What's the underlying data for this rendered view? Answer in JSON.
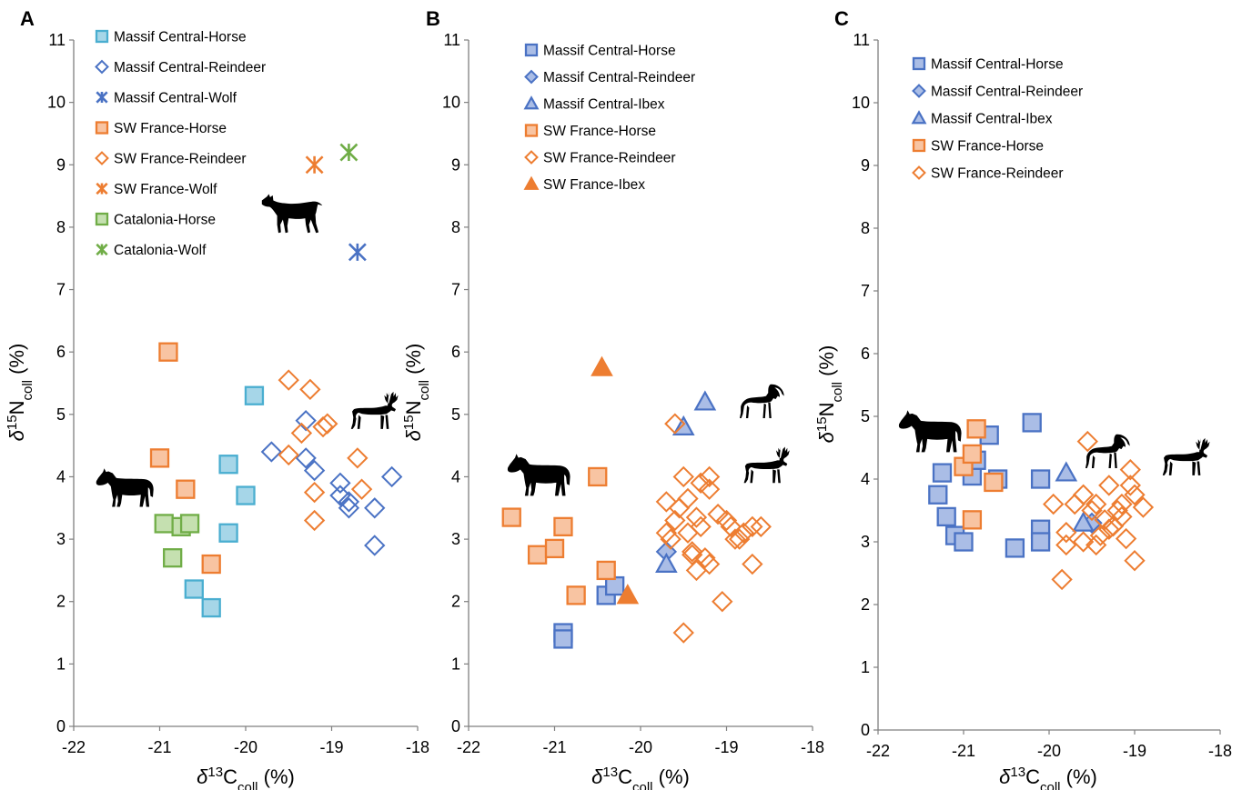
{
  "colors": {
    "teal": "#4aaed0",
    "teal_fill": "#a6d6e8",
    "blue": "#4a72c4",
    "blue_fill": "#aabde6",
    "orange": "#ed7d31",
    "orange_fill": "#f8c4a2",
    "green": "#70ad47",
    "green_fill": "#c5e0b0"
  },
  "chart_data": [
    {
      "panel": "A",
      "type": "scatter",
      "x_axis": {
        "symbol": "δ",
        "iso": "13",
        "el": "C",
        "sub": "coll",
        "unit": "(%)"
      },
      "y_axis": {
        "symbol": "δ",
        "iso": "15",
        "el": "N",
        "sub": "coll",
        "unit": "(%)"
      },
      "xlim": [
        -22,
        -18
      ],
      "ylim": [
        0,
        11
      ],
      "xticks": [
        "-22",
        "-21",
        "-20",
        "-19",
        "-18"
      ],
      "yticks": [
        "0",
        "1",
        "2",
        "3",
        "4",
        "5",
        "6",
        "7",
        "8",
        "9",
        "10",
        "11"
      ],
      "legend_position": "top-left",
      "silhouettes": [
        "wolf-icon",
        "reindeer-icon",
        "horse-icon"
      ],
      "series": [
        {
          "name": "Massif Central-Horse",
          "marker": "square",
          "stroke": "teal",
          "fill": "teal_fill",
          "points": [
            [
              -20.6,
              2.2
            ],
            [
              -20.4,
              1.9
            ],
            [
              -20.2,
              3.1
            ],
            [
              -20.2,
              4.2
            ],
            [
              -20.0,
              3.7
            ],
            [
              -19.9,
              5.3
            ]
          ]
        },
        {
          "name": "Massif Central-Reindeer",
          "marker": "diamond",
          "stroke": "blue",
          "fill": "none",
          "points": [
            [
              -19.7,
              4.4
            ],
            [
              -19.3,
              4.9
            ],
            [
              -19.3,
              4.3
            ],
            [
              -19.2,
              4.1
            ],
            [
              -18.9,
              3.9
            ],
            [
              -18.9,
              3.7
            ],
            [
              -18.8,
              3.6
            ],
            [
              -18.8,
              3.5
            ],
            [
              -18.5,
              3.5
            ],
            [
              -18.5,
              2.9
            ],
            [
              -18.3,
              4.0
            ]
          ]
        },
        {
          "name": "Massif Central-Wolf",
          "marker": "asterisk",
          "stroke": "blue",
          "fill": "none",
          "points": [
            [
              -18.7,
              7.6
            ]
          ]
        },
        {
          "name": "SW France-Horse",
          "marker": "square",
          "stroke": "orange",
          "fill": "orange_fill",
          "points": [
            [
              -21.0,
              4.3
            ],
            [
              -20.9,
              6.0
            ],
            [
              -20.7,
              3.8
            ],
            [
              -20.4,
              2.6
            ]
          ]
        },
        {
          "name": "SW France-Reindeer",
          "marker": "diamond",
          "stroke": "orange",
          "fill": "none",
          "points": [
            [
              -19.5,
              5.55
            ],
            [
              -19.5,
              4.35
            ],
            [
              -19.35,
              4.7
            ],
            [
              -19.25,
              5.4
            ],
            [
              -19.2,
              3.75
            ],
            [
              -19.2,
              3.3
            ],
            [
              -19.1,
              4.8
            ],
            [
              -19.05,
              4.85
            ],
            [
              -18.7,
              4.3
            ],
            [
              -18.65,
              3.8
            ]
          ]
        },
        {
          "name": "SW France-Wolf",
          "marker": "asterisk",
          "stroke": "orange",
          "fill": "none",
          "points": [
            [
              -19.2,
              9.0
            ]
          ]
        },
        {
          "name": "Catalonia-Horse",
          "marker": "square",
          "stroke": "green",
          "fill": "green_fill",
          "points": [
            [
              -20.95,
              3.25
            ],
            [
              -20.85,
              2.7
            ],
            [
              -20.75,
              3.2
            ],
            [
              -20.65,
              3.25
            ]
          ]
        },
        {
          "name": "Catalonia-Wolf",
          "marker": "asterisk",
          "stroke": "green",
          "fill": "none",
          "points": [
            [
              -18.8,
              9.2
            ]
          ]
        }
      ]
    },
    {
      "panel": "B",
      "type": "scatter",
      "x_axis": {
        "symbol": "δ",
        "iso": "13",
        "el": "C",
        "sub": "coll",
        "unit": "(%)"
      },
      "y_axis": {
        "symbol": "δ",
        "iso": "15",
        "el": "N",
        "sub": "coll",
        "unit": "(%)"
      },
      "xlim": [
        -22,
        -18
      ],
      "ylim": [
        0,
        11
      ],
      "xticks": [
        "-22",
        "-21",
        "-20",
        "-19",
        "-18"
      ],
      "yticks": [
        "0",
        "1",
        "2",
        "3",
        "4",
        "5",
        "6",
        "7",
        "8",
        "9",
        "10",
        "11"
      ],
      "legend_position": "top-center",
      "silhouettes": [
        "ibex-icon",
        "reindeer-icon",
        "horse-icon"
      ],
      "series": [
        {
          "name": "Massif Central-Horse",
          "marker": "square",
          "stroke": "blue",
          "fill": "blue_fill",
          "points": [
            [
              -20.9,
              1.5
            ],
            [
              -20.9,
              1.4
            ],
            [
              -20.4,
              2.1
            ],
            [
              -20.3,
              2.25
            ]
          ]
        },
        {
          "name": "Massif Central-Reindeer",
          "marker": "diamond",
          "stroke": "blue",
          "fill": "blue_fill",
          "points": [
            [
              -19.7,
              2.8
            ]
          ]
        },
        {
          "name": "Massif Central-Ibex",
          "marker": "triangle",
          "stroke": "blue",
          "fill": "blue_fill",
          "points": [
            [
              -19.7,
              2.6
            ],
            [
              -19.5,
              4.8
            ],
            [
              -19.25,
              5.2
            ]
          ]
        },
        {
          "name": "SW France-Horse",
          "marker": "square",
          "stroke": "orange",
          "fill": "orange_fill",
          "points": [
            [
              -21.5,
              3.35
            ],
            [
              -21.2,
              2.75
            ],
            [
              -21.0,
              2.85
            ],
            [
              -20.9,
              3.2
            ],
            [
              -20.75,
              2.1
            ],
            [
              -20.5,
              4.0
            ],
            [
              -20.4,
              2.5
            ]
          ]
        },
        {
          "name": "SW France-Reindeer",
          "marker": "diamond",
          "stroke": "orange",
          "fill": "none",
          "points": [
            [
              -19.7,
              3.1
            ],
            [
              -19.7,
              3.6
            ],
            [
              -19.65,
              3.0
            ],
            [
              -19.6,
              4.85
            ],
            [
              -19.55,
              3.5
            ],
            [
              -19.5,
              1.5
            ],
            [
              -19.5,
              4.0
            ],
            [
              -19.45,
              3.1
            ],
            [
              -19.4,
              2.75
            ],
            [
              -19.4,
              2.8
            ],
            [
              -19.35,
              3.35
            ],
            [
              -19.35,
              2.5
            ],
            [
              -19.3,
              3.9
            ],
            [
              -19.3,
              3.2
            ],
            [
              -19.25,
              2.7
            ],
            [
              -19.2,
              2.6
            ],
            [
              -19.2,
              4.0
            ],
            [
              -19.2,
              3.8
            ],
            [
              -19.1,
              3.4
            ],
            [
              -19.05,
              2.0
            ],
            [
              -19.0,
              3.3
            ],
            [
              -18.95,
              3.2
            ],
            [
              -18.9,
              3.0
            ],
            [
              -18.85,
              3.0
            ],
            [
              -18.8,
              3.1
            ],
            [
              -18.7,
              2.6
            ],
            [
              -18.7,
              3.2
            ],
            [
              -18.6,
              3.2
            ],
            [
              -19.6,
              3.3
            ],
            [
              -19.45,
              3.65
            ]
          ]
        },
        {
          "name": "SW France-Ibex",
          "marker": "triangle",
          "stroke": "orange",
          "fill": "orange",
          "points": [
            [
              -20.45,
              5.75
            ],
            [
              -20.15,
              2.1
            ]
          ]
        }
      ]
    },
    {
      "panel": "C",
      "type": "scatter",
      "x_axis": {
        "symbol": "δ",
        "iso": "13",
        "el": "C",
        "sub": "coll",
        "unit": "(%)"
      },
      "y_axis": {
        "symbol": "δ",
        "iso": "15",
        "el": "N",
        "sub": "coll",
        "unit": "(%)"
      },
      "xlim": [
        -22,
        -18
      ],
      "ylim": [
        0,
        11
      ],
      "xticks": [
        "-22",
        "-21",
        "-20",
        "-19",
        "-18"
      ],
      "yticks": [
        "0",
        "1",
        "2",
        "3",
        "4",
        "5",
        "6",
        "7",
        "8",
        "9",
        "10",
        "11"
      ],
      "legend_position": "top-center",
      "silhouettes": [
        "horse-icon",
        "ibex-icon",
        "reindeer-icon"
      ],
      "series": [
        {
          "name": "Massif Central-Horse",
          "marker": "square",
          "stroke": "blue",
          "fill": "blue_fill",
          "points": [
            [
              -21.3,
              3.75
            ],
            [
              -21.25,
              4.1
            ],
            [
              -21.2,
              3.4
            ],
            [
              -21.1,
              3.1
            ],
            [
              -21.0,
              3.0
            ],
            [
              -20.9,
              4.05
            ],
            [
              -20.85,
              4.3
            ],
            [
              -20.7,
              4.7
            ],
            [
              -20.6,
              4.0
            ],
            [
              -20.4,
              2.9
            ],
            [
              -20.2,
              4.9
            ],
            [
              -20.1,
              4.0
            ],
            [
              -20.1,
              3.2
            ],
            [
              -20.1,
              3.0
            ]
          ]
        },
        {
          "name": "Massif Central-Reindeer",
          "marker": "diamond",
          "stroke": "blue",
          "fill": "blue_fill",
          "points": [
            [
              -19.5,
              3.3
            ]
          ]
        },
        {
          "name": "Massif Central-Ibex",
          "marker": "triangle",
          "stroke": "blue",
          "fill": "blue_fill",
          "points": [
            [
              -19.8,
              4.1
            ],
            [
              -19.6,
              3.3
            ]
          ]
        },
        {
          "name": "SW France-Horse",
          "marker": "square",
          "stroke": "orange",
          "fill": "orange_fill",
          "points": [
            [
              -21.0,
              4.2
            ],
            [
              -20.9,
              4.4
            ],
            [
              -20.9,
              3.35
            ],
            [
              -20.85,
              4.8
            ],
            [
              -20.65,
              3.95
            ]
          ]
        },
        {
          "name": "SW France-Reindeer",
          "marker": "diamond",
          "stroke": "orange",
          "fill": "none",
          "points": [
            [
              -19.95,
              3.6
            ],
            [
              -19.85,
              2.4
            ],
            [
              -19.8,
              3.15
            ],
            [
              -19.8,
              2.95
            ],
            [
              -19.7,
              3.6
            ],
            [
              -19.6,
              3.75
            ],
            [
              -19.55,
              4.6
            ],
            [
              -19.5,
              3.5
            ],
            [
              -19.45,
              2.95
            ],
            [
              -19.4,
              3.1
            ],
            [
              -19.3,
              3.2
            ],
            [
              -19.3,
              3.9
            ],
            [
              -19.25,
              3.25
            ],
            [
              -19.2,
              3.5
            ],
            [
              -19.15,
              3.4
            ],
            [
              -19.1,
              3.05
            ],
            [
              -19.05,
              4.15
            ],
            [
              -19.05,
              3.9
            ],
            [
              -19.0,
              3.75
            ],
            [
              -19.0,
              2.7
            ],
            [
              -18.9,
              3.55
            ],
            [
              -19.45,
              3.6
            ],
            [
              -19.35,
              3.35
            ],
            [
              -19.15,
              3.6
            ],
            [
              -19.6,
              3.0
            ]
          ]
        }
      ]
    }
  ]
}
